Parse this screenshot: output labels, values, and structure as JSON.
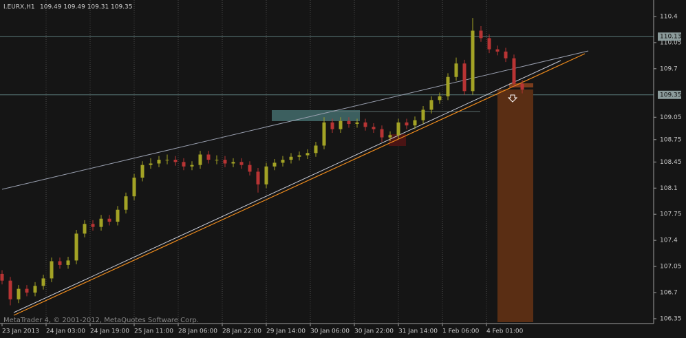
{
  "chart_data": {
    "type": "candlestick",
    "title": "I.EURX,H1",
    "subtitle": "109.49 109.49 109.31 109.35",
    "footer": "MetaTrader 4, © 2001-2012, MetaQuotes Software Corp.",
    "x": [
      0,
      3,
      6,
      9,
      12,
      15,
      18,
      21,
      24,
      27,
      30,
      33,
      36,
      39,
      42,
      45,
      48,
      51,
      54,
      57,
      60,
      63,
      66,
      69,
      72,
      75,
      78,
      81,
      84,
      87,
      90,
      93,
      96,
      99,
      102,
      105,
      108,
      111,
      114,
      117,
      120,
      123,
      126,
      129,
      132,
      135,
      138,
      141,
      144,
      147,
      150,
      153,
      156,
      159,
      162,
      165,
      168,
      171,
      174,
      177,
      180,
      183,
      186,
      189
    ],
    "open": [
      106.95,
      106.86,
      106.61,
      106.75,
      106.7,
      106.79,
      106.89,
      107.12,
      107.07,
      107.13,
      107.49,
      107.62,
      107.58,
      107.69,
      107.65,
      107.81,
      107.99,
      108.24,
      108.41,
      108.43,
      108.48,
      108.48,
      108.45,
      108.39,
      108.41,
      108.55,
      108.48,
      108.48,
      108.43,
      108.45,
      108.41,
      108.32,
      108.15,
      108.39,
      108.44,
      108.48,
      108.52,
      108.54,
      108.57,
      108.67,
      108.98,
      108.89,
      109.0,
      108.96,
      108.98,
      108.92,
      108.89,
      108.78,
      108.81,
      108.98,
      108.94,
      109.01,
      109.15,
      109.28,
      109.33,
      109.59,
      109.77,
      109.4,
      110.21,
      110.11,
      109.96,
      109.93,
      109.84,
      109.5
    ],
    "high": [
      107.0,
      106.91,
      106.8,
      106.8,
      106.84,
      106.94,
      107.17,
      107.17,
      107.18,
      107.54,
      107.67,
      107.67,
      107.74,
      107.74,
      107.86,
      108.04,
      108.29,
      108.46,
      108.5,
      108.53,
      108.55,
      108.53,
      108.5,
      108.46,
      108.6,
      108.6,
      108.54,
      108.53,
      108.5,
      108.5,
      108.46,
      108.37,
      108.44,
      108.49,
      108.53,
      108.57,
      108.59,
      108.62,
      108.72,
      109.05,
      109.03,
      109.05,
      109.05,
      109.03,
      109.03,
      108.97,
      108.94,
      108.86,
      109.03,
      109.03,
      109.06,
      109.2,
      109.33,
      109.38,
      109.64,
      109.85,
      109.82,
      110.38,
      110.27,
      110.16,
      110.01,
      109.98,
      109.89,
      109.55
    ],
    "low": [
      106.81,
      106.53,
      106.56,
      106.65,
      106.65,
      106.74,
      106.84,
      107.02,
      107.02,
      107.08,
      107.44,
      107.53,
      107.53,
      107.6,
      107.6,
      107.76,
      107.94,
      108.19,
      108.36,
      108.38,
      108.42,
      108.4,
      108.34,
      108.34,
      108.36,
      108.43,
      108.42,
      108.38,
      108.38,
      108.36,
      108.27,
      108.04,
      108.1,
      108.34,
      108.39,
      108.43,
      108.47,
      108.49,
      108.52,
      108.62,
      108.84,
      108.84,
      108.91,
      108.91,
      108.87,
      108.84,
      108.72,
      108.73,
      108.76,
      108.89,
      108.89,
      108.96,
      109.1,
      109.23,
      109.28,
      109.54,
      109.35,
      109.35,
      110.06,
      109.91,
      109.88,
      109.79,
      109.45,
      109.37
    ],
    "close": [
      106.86,
      106.61,
      106.75,
      106.7,
      106.79,
      106.89,
      107.12,
      107.07,
      107.13,
      107.49,
      107.62,
      107.58,
      107.69,
      107.65,
      107.81,
      107.99,
      108.24,
      108.41,
      108.43,
      108.48,
      108.48,
      108.45,
      108.39,
      108.41,
      108.55,
      108.48,
      108.48,
      108.43,
      108.45,
      108.41,
      108.32,
      108.15,
      108.39,
      108.44,
      108.48,
      108.52,
      108.54,
      108.57,
      108.67,
      108.98,
      108.89,
      109.0,
      108.96,
      108.98,
      108.92,
      108.89,
      108.78,
      108.81,
      108.98,
      108.94,
      109.01,
      109.15,
      109.28,
      109.33,
      109.59,
      109.77,
      109.4,
      110.21,
      110.11,
      109.96,
      109.93,
      109.84,
      109.5,
      109.42
    ],
    "up_color": "#a3a325",
    "down_color": "#b83434",
    "xlim": [
      -0.75,
      236.75
    ],
    "ylim": [
      106.285,
      110.621
    ],
    "yticks": [
      110.4,
      110.05,
      109.7,
      109.05,
      108.75,
      108.45,
      108.1,
      107.75,
      107.4,
      107.05,
      106.7,
      106.35
    ],
    "xticks": [
      {
        "value": 0,
        "label": "23 Jan 2013"
      },
      {
        "value": 16,
        "label": "24 Jan 03:00"
      },
      {
        "value": 32,
        "label": "24 Jan 19:00"
      },
      {
        "value": 48,
        "label": "25 Jan 11:00"
      },
      {
        "value": 64,
        "label": "28 Jan 06:00"
      },
      {
        "value": 80,
        "label": "28 Jan 22:00"
      },
      {
        "value": 96,
        "label": "29 Jan 14:00"
      },
      {
        "value": 112,
        "label": "30 Jan 06:00"
      },
      {
        "value": 128,
        "label": "30 Jan 22:00"
      },
      {
        "value": 144,
        "label": "31 Jan 14:00"
      },
      {
        "value": 160,
        "label": "1 Feb 06:00"
      },
      {
        "value": 176,
        "label": "4 Feb 01:00"
      }
    ],
    "price_lines": [
      110.13,
      109.35
    ],
    "grid": true
  }
}
